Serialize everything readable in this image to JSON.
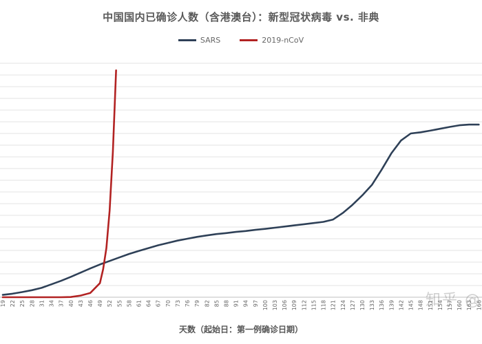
{
  "chart_data": {
    "type": "line",
    "title": "中国国内已确诊人数（含港澳台）：新型冠状病毒 vs. 非典",
    "xlabel": "天数（起始日：第一例确诊日期）",
    "ylabel": "",
    "x": [
      19,
      22,
      25,
      28,
      31,
      34,
      37,
      40,
      43,
      46,
      49,
      52,
      55,
      58,
      61,
      64,
      67,
      70,
      73,
      76,
      79,
      82,
      85,
      88,
      91,
      94,
      97,
      100,
      103,
      106,
      109,
      112,
      115,
      118,
      121,
      124,
      127,
      130,
      133,
      136,
      139,
      142,
      145,
      148,
      151,
      154,
      157,
      160,
      163,
      166
    ],
    "ylim": [
      0,
      100
    ],
    "grid": true,
    "legend_position": "top",
    "series": [
      {
        "name": "SARS",
        "color": "#2E4057",
        "x": [
          19,
          22,
          25,
          28,
          31,
          34,
          37,
          40,
          43,
          46,
          49,
          52,
          55,
          58,
          61,
          64,
          67,
          70,
          73,
          76,
          79,
          82,
          85,
          88,
          91,
          94,
          97,
          100,
          103,
          106,
          109,
          112,
          115,
          118,
          121,
          124,
          127,
          130,
          133,
          136,
          139,
          142,
          145,
          148,
          151,
          154,
          157,
          160,
          163,
          166
        ],
        "values": [
          1,
          1.5,
          2.2,
          3,
          4,
          5.5,
          7,
          8.7,
          10.5,
          12.3,
          14,
          15.5,
          17,
          18.5,
          19.8,
          21,
          22.2,
          23.2,
          24.2,
          25,
          25.8,
          26.4,
          27,
          27.4,
          27.9,
          28.3,
          28.8,
          29.2,
          29.7,
          30.2,
          30.7,
          31.2,
          31.7,
          32.2,
          33.2,
          36,
          39.5,
          43.5,
          48,
          54.5,
          61.5,
          67,
          70,
          70.5,
          71.2,
          72,
          72.8,
          73.5,
          73.8,
          73.8
        ]
      },
      {
        "name": "2019-nCoV",
        "color": "#B22222",
        "x": [
          19,
          22,
          25,
          28,
          31,
          34,
          37,
          40,
          43,
          46,
          49,
          50,
          51,
          52,
          53,
          54
        ],
        "values": [
          0,
          0,
          0,
          0,
          0,
          0,
          0,
          0.1,
          0.7,
          1.8,
          6,
          12,
          21,
          37,
          62,
          97
        ]
      }
    ]
  },
  "watermark": "知乎 @"
}
